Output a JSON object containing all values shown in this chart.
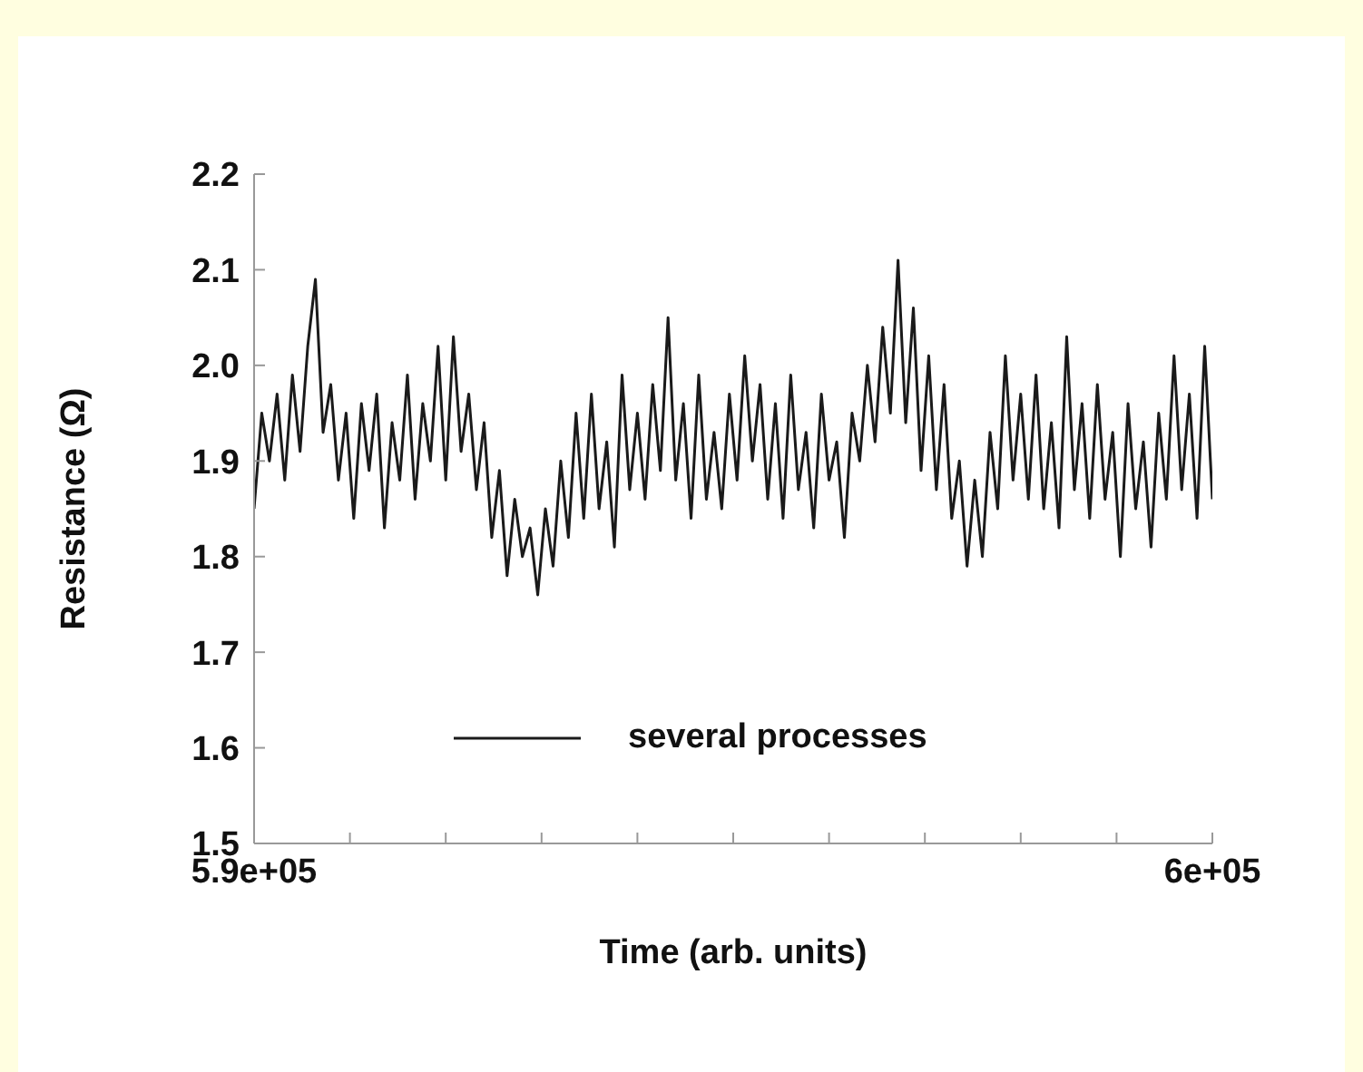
{
  "chart_data": {
    "type": "line",
    "xlabel": "Time (arb.  units)",
    "ylabel": "Resistance (Ω)",
    "xlim": [
      590000,
      600000
    ],
    "xticks": [
      {
        "value": 590000,
        "label": "5.9e+05"
      },
      {
        "value": 591000,
        "label": null
      },
      {
        "value": 592000,
        "label": null
      },
      {
        "value": 593000,
        "label": null
      },
      {
        "value": 594000,
        "label": null
      },
      {
        "value": 595000,
        "label": null
      },
      {
        "value": 596000,
        "label": null
      },
      {
        "value": 597000,
        "label": null
      },
      {
        "value": 598000,
        "label": null
      },
      {
        "value": 599000,
        "label": null
      },
      {
        "value": 600000,
        "label": "6e+05"
      }
    ],
    "ylim": [
      1.5,
      2.2
    ],
    "yticks": [
      1.5,
      1.6,
      1.7,
      1.8,
      1.9,
      {
        "value": 2,
        "label": "2.0"
      },
      2.1,
      2.2
    ],
    "grid": false,
    "legend": "bottom right",
    "marker": "none",
    "line_style": "solid",
    "x": [
      590000,
      590080,
      590160,
      590240,
      590320,
      590400,
      590480,
      590560,
      590640,
      590720,
      590800,
      590880,
      590960,
      591040,
      591120,
      591200,
      591280,
      591360,
      591440,
      591520,
      591600,
      591680,
      591760,
      591840,
      591920,
      592000,
      592080,
      592160,
      592240,
      592320,
      592400,
      592480,
      592560,
      592640,
      592720,
      592800,
      592880,
      592960,
      593040,
      593120,
      593200,
      593280,
      593360,
      593440,
      593520,
      593600,
      593680,
      593760,
      593840,
      593920,
      594000,
      594080,
      594160,
      594240,
      594320,
      594400,
      594480,
      594560,
      594640,
      594720,
      594800,
      594880,
      594960,
      595040,
      595120,
      595200,
      595280,
      595360,
      595440,
      595520,
      595600,
      595680,
      595760,
      595840,
      595920,
      596000,
      596080,
      596160,
      596240,
      596320,
      596400,
      596480,
      596560,
      596640,
      596720,
      596800,
      596880,
      596960,
      597040,
      597120,
      597200,
      597280,
      597360,
      597440,
      597520,
      597600,
      597680,
      597760,
      597840,
      597920,
      598000,
      598080,
      598160,
      598240,
      598320,
      598400,
      598480,
      598560,
      598640,
      598720,
      598800,
      598880,
      598960,
      599040,
      599120,
      599200,
      599280,
      599360,
      599440,
      599520,
      599600,
      599680,
      599760,
      599840,
      599920,
      600000
    ],
    "series": [
      {
        "name": "several processes",
        "color": "#1a1a1a",
        "values": [
          1.85,
          1.95,
          1.9,
          1.97,
          1.88,
          1.99,
          1.91,
          2.02,
          2.09,
          1.93,
          1.98,
          1.88,
          1.95,
          1.84,
          1.96,
          1.89,
          1.97,
          1.83,
          1.94,
          1.88,
          1.99,
          1.86,
          1.96,
          1.9,
          2.02,
          1.88,
          2.03,
          1.91,
          1.97,
          1.87,
          1.94,
          1.82,
          1.89,
          1.78,
          1.86,
          1.8,
          1.83,
          1.76,
          1.85,
          1.79,
          1.9,
          1.82,
          1.95,
          1.84,
          1.97,
          1.85,
          1.92,
          1.81,
          1.99,
          1.87,
          1.95,
          1.86,
          1.98,
          1.89,
          2.05,
          1.88,
          1.96,
          1.84,
          1.99,
          1.86,
          1.93,
          1.85,
          1.97,
          1.88,
          2.01,
          1.9,
          1.98,
          1.86,
          1.96,
          1.84,
          1.99,
          1.87,
          1.93,
          1.83,
          1.97,
          1.88,
          1.92,
          1.82,
          1.95,
          1.9,
          2.0,
          1.92,
          2.04,
          1.95,
          2.11,
          1.94,
          2.06,
          1.89,
          2.01,
          1.87,
          1.98,
          1.84,
          1.9,
          1.79,
          1.88,
          1.8,
          1.93,
          1.85,
          2.01,
          1.88,
          1.97,
          1.86,
          1.99,
          1.85,
          1.94,
          1.83,
          2.03,
          1.87,
          1.96,
          1.84,
          1.98,
          1.86,
          1.93,
          1.8,
          1.96,
          1.85,
          1.92,
          1.81,
          1.95,
          1.86,
          2.01,
          1.87,
          1.97,
          1.84,
          2.02,
          1.86
        ]
      }
    ]
  }
}
